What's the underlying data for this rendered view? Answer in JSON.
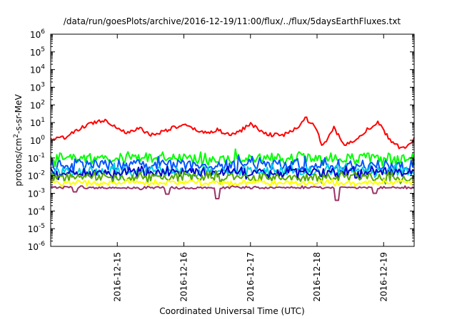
{
  "chart_data": {
    "type": "line",
    "title": "/data/run/goesPlots/archive/2016-12-19/11:00/flux/../flux/5daysEarthFluxes.txt",
    "xlabel": "Coordinated Universal Time (UTC)",
    "ylabel": {
      "prefix": "protons/cm",
      "sup": "2",
      "suffix": "-s-sr-MeV"
    },
    "yscale": "log",
    "ylim": [
      1e-06,
      1000000.0
    ],
    "y_ticks": [
      {
        "base": "10",
        "exp": "-6",
        "value": 1e-06
      },
      {
        "base": "10",
        "exp": "-5",
        "value": 1e-05
      },
      {
        "base": "10",
        "exp": "-4",
        "value": 0.0001
      },
      {
        "base": "10",
        "exp": "-3",
        "value": 0.001
      },
      {
        "base": "10",
        "exp": "-2",
        "value": 0.01
      },
      {
        "base": "10",
        "exp": "-1",
        "value": 0.1
      },
      {
        "base": "10",
        "exp": "0",
        "value": 1
      },
      {
        "base": "10",
        "exp": "1",
        "value": 10
      },
      {
        "base": "10",
        "exp": "2",
        "value": 100
      },
      {
        "base": "10",
        "exp": "3",
        "value": 1000
      },
      {
        "base": "10",
        "exp": "4",
        "value": 10000
      },
      {
        "base": "10",
        "exp": "5",
        "value": 100000
      },
      {
        "base": "10",
        "exp": "6",
        "value": 1000000
      }
    ],
    "xlim": [
      "2016-12-14T00:00",
      "2016-12-19T11:00"
    ],
    "x_ticks": [
      {
        "label": "2016-12-15",
        "value": "2016-12-15T00:00"
      },
      {
        "label": "2016-12-16",
        "value": "2016-12-16T00:00"
      },
      {
        "label": "2016-12-17",
        "value": "2016-12-17T00:00"
      },
      {
        "label": "2016-12-18",
        "value": "2016-12-18T00:00"
      },
      {
        "label": "2016-12-19",
        "value": "2016-12-19T00:00"
      }
    ],
    "grid": false,
    "legend": "none",
    "series": [
      {
        "color": "#ff0000",
        "kind": "smooth",
        "points": [
          [
            "2016-12-14T00:00",
            1.2
          ],
          [
            "2016-12-14T04:00",
            1.3
          ],
          [
            "2016-12-14T08:00",
            2.5
          ],
          [
            "2016-12-14T12:00",
            6
          ],
          [
            "2016-12-14T16:00",
            11
          ],
          [
            "2016-12-14T20:00",
            14
          ],
          [
            "2016-12-15T00:00",
            5
          ],
          [
            "2016-12-15T04:00",
            2.5
          ],
          [
            "2016-12-15T08:00",
            5
          ],
          [
            "2016-12-15T12:00",
            2
          ],
          [
            "2016-12-15T16:00",
            3
          ],
          [
            "2016-12-15T20:00",
            5
          ],
          [
            "2016-12-16T00:00",
            7
          ],
          [
            "2016-12-16T04:00",
            4
          ],
          [
            "2016-12-16T08:00",
            2.5
          ],
          [
            "2016-12-16T12:00",
            4
          ],
          [
            "2016-12-16T16:00",
            2
          ],
          [
            "2016-12-16T20:00",
            3
          ],
          [
            "2016-12-17T00:00",
            9
          ],
          [
            "2016-12-17T04:00",
            3
          ],
          [
            "2016-12-17T08:00",
            2
          ],
          [
            "2016-12-17T12:00",
            2
          ],
          [
            "2016-12-17T16:00",
            4
          ],
          [
            "2016-12-17T20:00",
            18
          ],
          [
            "2016-12-18T00:00",
            4
          ],
          [
            "2016-12-18T02:00",
            0.4
          ],
          [
            "2016-12-18T06:00",
            5
          ],
          [
            "2016-12-18T10:00",
            0.5
          ],
          [
            "2016-12-18T14:00",
            1.2
          ],
          [
            "2016-12-18T18:00",
            4
          ],
          [
            "2016-12-18T22:00",
            10
          ],
          [
            "2016-12-19T02:00",
            1.2
          ],
          [
            "2016-12-19T06:00",
            0.35
          ],
          [
            "2016-12-19T10:00",
            0.6
          ],
          [
            "2016-12-19T11:00",
            1.2
          ]
        ]
      },
      {
        "color": "#00ff00",
        "kind": "band",
        "level": 0.1,
        "noise": 0.28,
        "dips": []
      },
      {
        "color": "#0055ff",
        "kind": "band",
        "level": 0.04,
        "noise": 0.3,
        "dips": []
      },
      {
        "color": "#00ccdd",
        "kind": "band",
        "level": 0.018,
        "noise": 0.25,
        "dips": []
      },
      {
        "color": "#0000cc",
        "kind": "band",
        "level": 0.015,
        "noise": 0.22,
        "dips": []
      },
      {
        "color": "#55aa00",
        "kind": "band",
        "level": 0.008,
        "noise": 0.22,
        "dips": []
      },
      {
        "color": "#ffff00",
        "kind": "band",
        "level": 0.004,
        "noise": 0.12,
        "dips": []
      },
      {
        "color": "#993366",
        "kind": "band",
        "level": 0.0021,
        "noise": 0.06,
        "dips": [
          [
            "2016-12-14T09:00",
            0.0012
          ],
          [
            "2016-12-15T18:00",
            0.0009
          ],
          [
            "2016-12-16T12:00",
            0.0005
          ],
          [
            "2016-12-18T07:00",
            0.0004
          ],
          [
            "2016-12-18T21:00",
            0.001
          ]
        ]
      }
    ]
  }
}
